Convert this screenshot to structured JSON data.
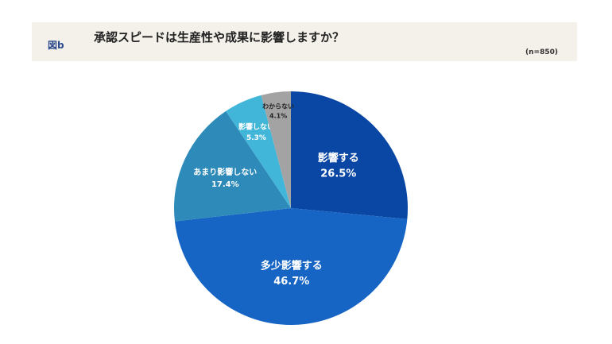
{
  "figure_label": "図b",
  "chart_data": {
    "type": "pie",
    "title": "承認スピードは生産性や成果に影響しますか？",
    "subtitle": "(n=850)",
    "slices": [
      {
        "label": "影響する",
        "value": 26.5,
        "value_label": "26.5%",
        "color": "#0a47a4",
        "text_color": "#ffffff"
      },
      {
        "label": "多少影響する",
        "value": 46.7,
        "value_label": "46.7%",
        "color": "#1665c4",
        "text_color": "#ffffff"
      },
      {
        "label": "あまり影響しない",
        "value": 17.4,
        "value_label": "17.4%",
        "color": "#2e8ab8",
        "text_color": "#ffffff"
      },
      {
        "label": "影響しない",
        "value": 5.3,
        "value_label": "5.3%",
        "color": "#42b6d8",
        "text_color": "#ffffff"
      },
      {
        "label": "わからない",
        "value": 4.1,
        "value_label": "4.1%",
        "color": "#a3a3a3",
        "text_color": "#222222"
      }
    ]
  }
}
